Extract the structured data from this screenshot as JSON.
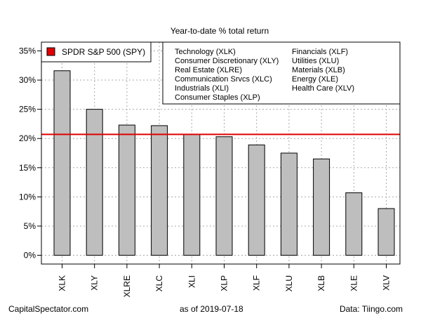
{
  "chart_data": {
    "type": "bar",
    "title": "Year-to-date % total return",
    "categories": [
      "XLK",
      "XLY",
      "XLRE",
      "XLC",
      "XLI",
      "XLP",
      "XLF",
      "XLU",
      "XLB",
      "XLE",
      "XLV"
    ],
    "values": [
      31.6,
      25.0,
      22.3,
      22.2,
      20.7,
      20.3,
      18.9,
      17.5,
      16.5,
      10.7,
      8.0
    ],
    "ylim": [
      -1.5,
      36.5
    ],
    "yticks": [
      0,
      5,
      10,
      15,
      20,
      25,
      30,
      35
    ],
    "ytick_labels": [
      "0%",
      "5%",
      "10%",
      "15%",
      "20%",
      "25%",
      "30%",
      "35%"
    ],
    "reference_line": {
      "value": 20.7,
      "color": "#e00000",
      "label": "SPDR S&P 500 (SPY)"
    },
    "bar_color": "#bebebe",
    "grid": true,
    "legend_keys_col1": [
      "Technology (XLK)",
      "Consumer Discretionary (XLY)",
      "Real Estate (XLRE)",
      "Communication Srvcs (XLC)",
      "Industrials (XLI)",
      "Consumer Staples (XLP)"
    ],
    "legend_keys_col2": [
      "Financials (XLF)",
      "Utilities (XLU)",
      "Materials (XLB)",
      "Energy (XLE)",
      "Health Care (XLV)"
    ]
  },
  "footer": {
    "left": "CapitalSpectator.com",
    "middle": "as of   2019-07-18",
    "right": "Data: Tiingo.com"
  }
}
